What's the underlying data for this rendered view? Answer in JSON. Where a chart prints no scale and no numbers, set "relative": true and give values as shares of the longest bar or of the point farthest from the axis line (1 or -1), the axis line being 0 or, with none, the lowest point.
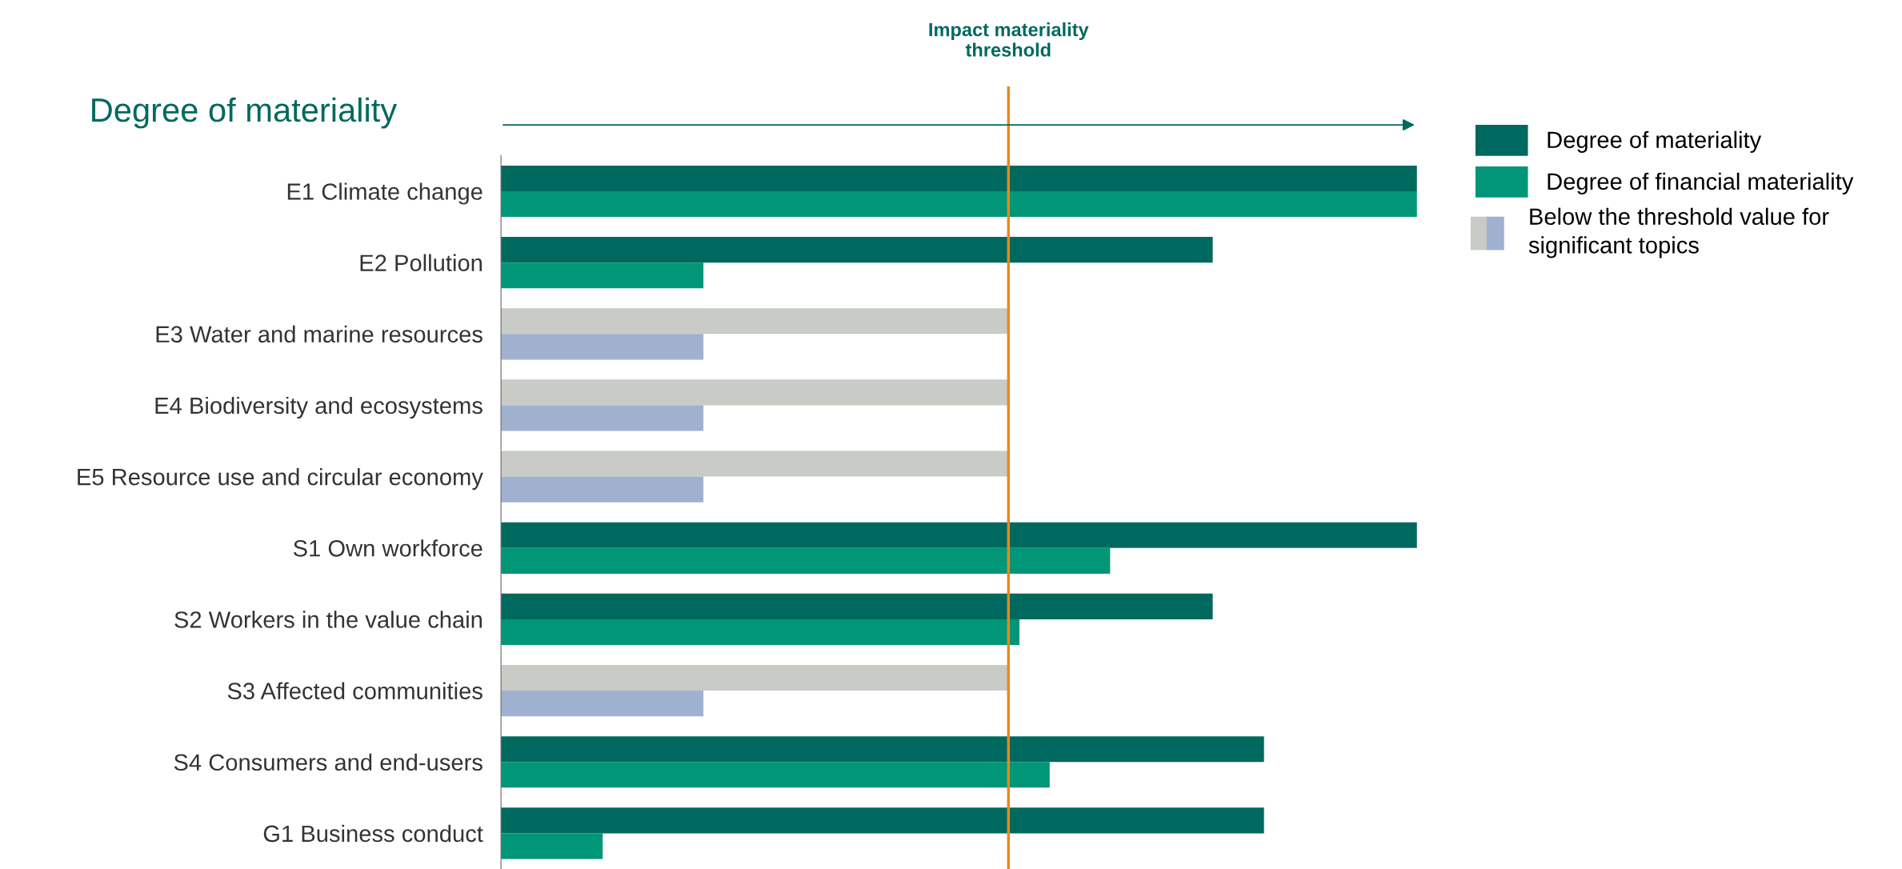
{
  "chart_data": {
    "type": "bar",
    "orientation": "horizontal",
    "relative": true,
    "xlabel": "Degree of materiality",
    "categories": [
      "E1 Climate change",
      "E2 Pollution",
      "E3 Water and marine resources",
      "E4 Biodiversity and ecosystems",
      "E5 Resource use and circular economy",
      "S1 Own workforce",
      "S2 Workers in the value chain",
      "S3 Affected communities",
      "S4 Consumers and end-users",
      "G1 Business conduct"
    ],
    "series": [
      {
        "name": "Degree of materiality",
        "color": "#00695f",
        "colors": [
          "#00695f",
          "#00695f",
          "#c8cbc6",
          "#c8cbc6",
          "#c8cbc6",
          "#00695f",
          "#00695f",
          "#c8cbc6",
          "#00695f",
          "#00695f"
        ],
        "values": [
          1,
          0.777,
          0.554,
          0.554,
          0.554,
          1,
          0.777,
          0.554,
          0.833,
          0.833
        ]
      },
      {
        "name": "Degree of financial materiality",
        "color": "#009677",
        "colors": [
          "#009677",
          "#009677",
          "#a0b1d0",
          "#a0b1d0",
          "#a0b1d0",
          "#009677",
          "#009677",
          "#a0b1d0",
          "#009677",
          "#009677"
        ],
        "values": [
          1,
          0.221,
          0.221,
          0.221,
          0.221,
          0.665,
          0.566,
          0.221,
          0.599,
          0.111
        ]
      }
    ],
    "ref_lines": [
      {
        "axis": "x",
        "value": 0.554,
        "label": "Impact materiality\nthreshold",
        "color": "#e8891a"
      }
    ],
    "annotations": [
      "Below the threshold value for\nsignificant topics"
    ],
    "legend": "right",
    "grid": false
  }
}
